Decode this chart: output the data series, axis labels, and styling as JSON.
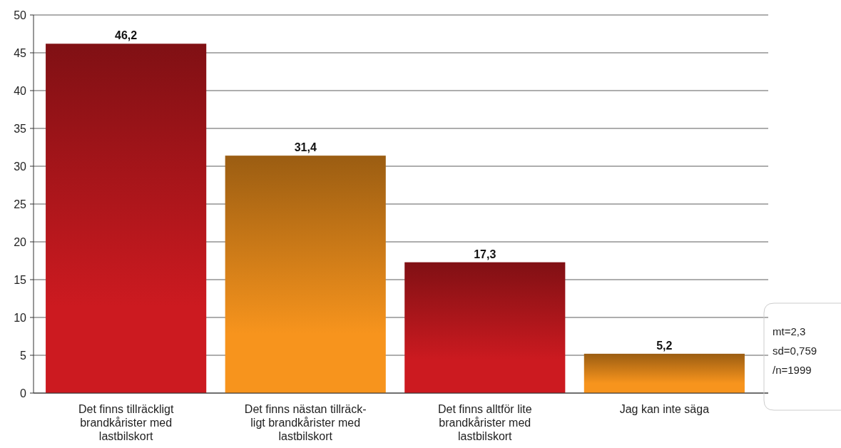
{
  "chart_data": {
    "type": "bar",
    "categories": [
      "Det finns tillräckligt\nbrandkårister med\nlastbilskort",
      "Det finns nästan tillräck-\nligt brandkårister med\nlastbilskort",
      "Det finns alltför lite\nbrandkårister med\nlastbilskort",
      "Jag kan inte säga"
    ],
    "values": [
      46.2,
      31.4,
      17.3,
      5.2
    ],
    "value_labels": [
      "46,2",
      "31,4",
      "17,3",
      "5,2"
    ],
    "colors": [
      "#cc1a20",
      "#f7941d",
      "#cc1a20",
      "#f7941d"
    ],
    "ylim": [
      0,
      50
    ],
    "yticks": [
      0,
      5,
      10,
      15,
      20,
      25,
      30,
      35,
      40,
      45,
      50
    ],
    "grid": "y",
    "annotations": [
      "mt=2,3",
      "sd=0,759",
      "/n=1999"
    ]
  }
}
